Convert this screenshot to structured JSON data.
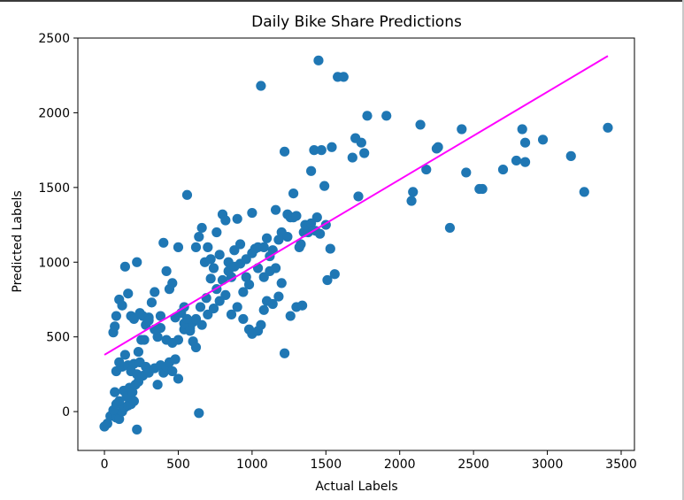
{
  "chart_data": {
    "type": "scatter",
    "title": "Daily Bike Share Predictions",
    "xlabel": "Actual Labels",
    "ylabel": "Predicted Labels",
    "xlim": [
      -180,
      3590
    ],
    "ylim": [
      -260,
      2500
    ],
    "xticks": [
      "0",
      "500",
      "1000",
      "1500",
      "2000",
      "2500",
      "3000",
      "3500"
    ],
    "yticks": [
      "0",
      "500",
      "1000",
      "1500",
      "2000",
      "2500"
    ],
    "grid": false,
    "point_color": "#1f77b4",
    "line_color": "#ff00ff",
    "trend_line": {
      "x": [
        0,
        3410
      ],
      "y": [
        380,
        2380
      ]
    },
    "points": [
      [
        0,
        -100
      ],
      [
        20,
        -80
      ],
      [
        40,
        -30
      ],
      [
        60,
        -20
      ],
      [
        80,
        -40
      ],
      [
        100,
        -50
      ],
      [
        120,
        0
      ],
      [
        140,
        30
      ],
      [
        160,
        40
      ],
      [
        180,
        50
      ],
      [
        200,
        70
      ],
      [
        220,
        -120
      ],
      [
        60,
        10
      ],
      [
        80,
        50
      ],
      [
        100,
        70
      ],
      [
        70,
        130
      ],
      [
        130,
        140
      ],
      [
        150,
        100
      ],
      [
        170,
        160
      ],
      [
        190,
        130
      ],
      [
        210,
        180
      ],
      [
        230,
        200
      ],
      [
        80,
        270
      ],
      [
        120,
        300
      ],
      [
        160,
        310
      ],
      [
        200,
        320
      ],
      [
        240,
        330
      ],
      [
        280,
        300
      ],
      [
        100,
        330
      ],
      [
        140,
        380
      ],
      [
        180,
        270
      ],
      [
        220,
        250
      ],
      [
        260,
        240
      ],
      [
        300,
        260
      ],
      [
        340,
        290
      ],
      [
        380,
        310
      ],
      [
        400,
        260
      ],
      [
        420,
        300
      ],
      [
        440,
        330
      ],
      [
        460,
        270
      ],
      [
        480,
        350
      ],
      [
        500,
        220
      ],
      [
        360,
        180
      ],
      [
        60,
        530
      ],
      [
        70,
        570
      ],
      [
        80,
        640
      ],
      [
        100,
        750
      ],
      [
        120,
        710
      ],
      [
        140,
        970
      ],
      [
        160,
        790
      ],
      [
        180,
        640
      ],
      [
        200,
        620
      ],
      [
        220,
        1000
      ],
      [
        240,
        660
      ],
      [
        260,
        640
      ],
      [
        280,
        580
      ],
      [
        300,
        630
      ],
      [
        320,
        730
      ],
      [
        340,
        800
      ],
      [
        360,
        500
      ],
      [
        380,
        640
      ],
      [
        400,
        1130
      ],
      [
        420,
        940
      ],
      [
        440,
        820
      ],
      [
        460,
        860
      ],
      [
        480,
        630
      ],
      [
        500,
        1100
      ],
      [
        520,
        660
      ],
      [
        540,
        700
      ],
      [
        560,
        1450
      ],
      [
        580,
        540
      ],
      [
        600,
        600
      ],
      [
        620,
        1100
      ],
      [
        640,
        1170
      ],
      [
        660,
        1230
      ],
      [
        680,
        1000
      ],
      [
        700,
        1100
      ],
      [
        720,
        1020
      ],
      [
        740,
        960
      ],
      [
        760,
        1200
      ],
      [
        780,
        1050
      ],
      [
        800,
        1320
      ],
      [
        820,
        1280
      ],
      [
        840,
        1000
      ],
      [
        860,
        900
      ],
      [
        880,
        1080
      ],
      [
        900,
        1290
      ],
      [
        920,
        1120
      ],
      [
        940,
        800
      ],
      [
        960,
        900
      ],
      [
        980,
        850
      ],
      [
        1000,
        1330
      ],
      [
        1020,
        1090
      ],
      [
        1040,
        1100
      ],
      [
        1060,
        2180
      ],
      [
        1080,
        1100
      ],
      [
        1100,
        1160
      ],
      [
        1120,
        1040
      ],
      [
        1140,
        1080
      ],
      [
        1160,
        1350
      ],
      [
        1180,
        1150
      ],
      [
        1200,
        1200
      ],
      [
        1220,
        1740
      ],
      [
        1240,
        1320
      ],
      [
        1260,
        1300
      ],
      [
        1280,
        1460
      ],
      [
        1320,
        1100
      ],
      [
        1350,
        1200
      ],
      [
        1380,
        1200
      ],
      [
        1400,
        1610
      ],
      [
        1420,
        1750
      ],
      [
        1440,
        1300
      ],
      [
        1450,
        2350
      ],
      [
        1470,
        1750
      ],
      [
        1490,
        1510
      ],
      [
        1510,
        880
      ],
      [
        1530,
        1090
      ],
      [
        1540,
        1770
      ],
      [
        1560,
        920
      ],
      [
        1580,
        2240
      ],
      [
        1620,
        2240
      ],
      [
        1680,
        1700
      ],
      [
        1700,
        1830
      ],
      [
        1720,
        1440
      ],
      [
        1740,
        1800
      ],
      [
        1760,
        1730
      ],
      [
        1780,
        1980
      ],
      [
        1910,
        1980
      ],
      [
        2080,
        1410
      ],
      [
        2090,
        1470
      ],
      [
        2140,
        1920
      ],
      [
        2180,
        1620
      ],
      [
        2260,
        1770
      ],
      [
        2250,
        1760
      ],
      [
        2340,
        1230
      ],
      [
        2420,
        1890
      ],
      [
        2450,
        1600
      ],
      [
        2540,
        1490
      ],
      [
        2560,
        1490
      ],
      [
        2700,
        1620
      ],
      [
        2790,
        1680
      ],
      [
        2830,
        1890
      ],
      [
        2850,
        1670
      ],
      [
        2850,
        1800
      ],
      [
        2970,
        1820
      ],
      [
        3160,
        1710
      ],
      [
        3250,
        1470
      ],
      [
        3410,
        1900
      ],
      [
        230,
        400
      ],
      [
        250,
        480
      ],
      [
        270,
        480
      ],
      [
        300,
        610
      ],
      [
        340,
        550
      ],
      [
        380,
        560
      ],
      [
        420,
        480
      ],
      [
        460,
        460
      ],
      [
        500,
        480
      ],
      [
        540,
        550
      ],
      [
        580,
        560
      ],
      [
        620,
        620
      ],
      [
        660,
        580
      ],
      [
        700,
        650
      ],
      [
        740,
        690
      ],
      [
        780,
        740
      ],
      [
        820,
        780
      ],
      [
        860,
        650
      ],
      [
        900,
        700
      ],
      [
        940,
        620
      ],
      [
        980,
        550
      ],
      [
        1000,
        520
      ],
      [
        1040,
        540
      ],
      [
        1060,
        580
      ],
      [
        1080,
        680
      ],
      [
        1100,
        740
      ],
      [
        1140,
        720
      ],
      [
        1180,
        770
      ],
      [
        1220,
        390
      ],
      [
        1260,
        640
      ],
      [
        1300,
        700
      ],
      [
        1340,
        710
      ],
      [
        640,
        -10
      ],
      [
        540,
        590
      ],
      [
        560,
        620
      ],
      [
        600,
        470
      ],
      [
        620,
        430
      ],
      [
        650,
        700
      ],
      [
        690,
        760
      ],
      [
        720,
        890
      ],
      [
        760,
        820
      ],
      [
        800,
        880
      ],
      [
        840,
        940
      ],
      [
        880,
        970
      ],
      [
        920,
        990
      ],
      [
        960,
        1020
      ],
      [
        1000,
        1060
      ],
      [
        1040,
        960
      ],
      [
        1080,
        900
      ],
      [
        1120,
        940
      ],
      [
        1160,
        960
      ],
      [
        1200,
        860
      ],
      [
        1240,
        1170
      ],
      [
        1280,
        1300
      ],
      [
        1300,
        1310
      ],
      [
        1330,
        1120
      ],
      [
        1360,
        1250
      ],
      [
        1400,
        1260
      ],
      [
        1430,
        1210
      ],
      [
        1460,
        1190
      ],
      [
        1500,
        1250
      ]
    ]
  }
}
